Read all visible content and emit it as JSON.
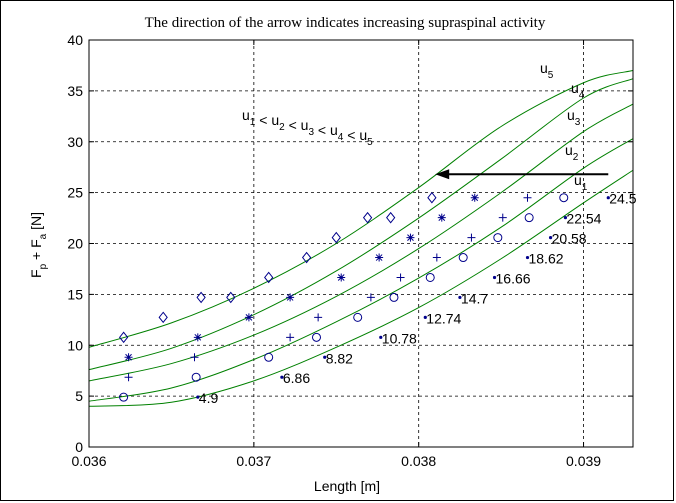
{
  "chart_data": {
    "type": "line",
    "title": "The direction of the arrow indicates increasing supraspinal activity",
    "xlabel": "Length [m]",
    "ylabel": {
      "base1": "F",
      "sub1": "p",
      "mid": " + F",
      "sub2": "a",
      "end": " [N]"
    },
    "xlim": [
      0.036,
      0.0393
    ],
    "ylim": [
      0,
      40
    ],
    "xticks": [
      0.036,
      0.037,
      0.038,
      0.039
    ],
    "yticks": [
      0,
      5,
      10,
      15,
      20,
      25,
      30,
      35,
      40
    ],
    "grid": true,
    "colors": {
      "curve": "#008000",
      "marker": "#00008b",
      "axis": "#000000"
    },
    "annotation_order": "u1 < u2 < u3 < u4 < u5",
    "arrow": {
      "from": [
        0.03915,
        26.8
      ],
      "to": [
        0.0381,
        26.8
      ],
      "direction": "left"
    },
    "curves": [
      {
        "name": "u1",
        "label_base": "u",
        "label_sub": "1",
        "x": [
          0.036,
          0.0365,
          0.037,
          0.0375,
          0.038,
          0.0385,
          0.039,
          0.0393
        ],
        "y": [
          4.0,
          4.4,
          6.5,
          9.8,
          13.7,
          18.5,
          24.0,
          27.2
        ]
      },
      {
        "name": "u2",
        "label_base": "u",
        "label_sub": "2",
        "x": [
          0.036,
          0.0365,
          0.037,
          0.0375,
          0.038,
          0.0385,
          0.039,
          0.0393
        ],
        "y": [
          4.5,
          5.8,
          8.6,
          12.3,
          16.6,
          21.6,
          27.4,
          30.3
        ]
      },
      {
        "name": "u3",
        "label_base": "u",
        "label_sub": "3",
        "x": [
          0.036,
          0.0365,
          0.037,
          0.0375,
          0.038,
          0.0385,
          0.039,
          0.0393
        ],
        "y": [
          6.5,
          8.2,
          11.0,
          14.8,
          19.5,
          25.0,
          31.0,
          33.7
        ]
      },
      {
        "name": "u4",
        "label_base": "u",
        "label_sub": "4",
        "x": [
          0.036,
          0.0365,
          0.037,
          0.0375,
          0.038,
          0.0385,
          0.039,
          0.0393
        ],
        "y": [
          7.6,
          9.7,
          13.0,
          17.3,
          22.5,
          28.3,
          34.3,
          36.2
        ]
      },
      {
        "name": "u5",
        "label_base": "u",
        "label_sub": "5",
        "x": [
          0.036,
          0.0365,
          0.037,
          0.0375,
          0.038,
          0.0385,
          0.039,
          0.0393
        ],
        "y": [
          9.8,
          12.2,
          15.6,
          20.0,
          25.5,
          31.5,
          35.8,
          37.0
        ]
      }
    ],
    "labelled_points": [
      {
        "x": 0.03666,
        "y": 4.9,
        "label": "4.9"
      },
      {
        "x": 0.03717,
        "y": 6.86,
        "label": "6.86"
      },
      {
        "x": 0.03743,
        "y": 8.82,
        "label": "8.82"
      },
      {
        "x": 0.03777,
        "y": 10.78,
        "label": "10.78"
      },
      {
        "x": 0.03804,
        "y": 12.74,
        "label": "12.74"
      },
      {
        "x": 0.03825,
        "y": 14.7,
        "label": "14.7"
      },
      {
        "x": 0.03846,
        "y": 16.66,
        "label": "16.66"
      },
      {
        "x": 0.03866,
        "y": 18.62,
        "label": "18.62"
      },
      {
        "x": 0.0388,
        "y": 20.58,
        "label": "20.58"
      },
      {
        "x": 0.03889,
        "y": 22.54,
        "label": "22.54"
      },
      {
        "x": 0.03915,
        "y": 24.5,
        "label": "24.5"
      }
    ],
    "marker_series": [
      {
        "marker": "circle",
        "x": [
          0.03621,
          0.03665,
          0.03709,
          0.03738,
          0.03763,
          0.03785,
          0.03807,
          0.03827,
          0.03848,
          0.03867,
          0.03888
        ],
        "y": [
          4.9,
          6.86,
          8.82,
          10.78,
          12.74,
          14.7,
          16.66,
          18.62,
          20.58,
          22.54,
          24.5
        ]
      },
      {
        "marker": "plus",
        "x": [
          0.03624,
          0.03664,
          0.03722,
          0.03739,
          0.03771,
          0.03789,
          0.03811,
          0.03832,
          0.03851,
          0.03866
        ],
        "y": [
          6.86,
          8.82,
          10.78,
          12.74,
          14.7,
          16.66,
          18.62,
          20.58,
          22.54,
          24.5
        ]
      },
      {
        "marker": "asterisk",
        "x": [
          0.03624,
          0.03666,
          0.03697,
          0.03722,
          0.03753,
          0.03776,
          0.03795,
          0.03814,
          0.03834
        ],
        "y": [
          8.82,
          10.78,
          12.74,
          14.7,
          16.66,
          18.62,
          20.58,
          22.54,
          24.5
        ]
      },
      {
        "marker": "diamond",
        "x": [
          0.03621,
          0.03645,
          0.03668,
          0.03686,
          0.03709,
          0.03732,
          0.0375,
          0.03769,
          0.03783,
          0.03808
        ],
        "y": [
          10.78,
          12.74,
          14.7,
          14.7,
          16.66,
          18.62,
          20.58,
          22.54,
          22.54,
          24.5
        ]
      }
    ]
  }
}
